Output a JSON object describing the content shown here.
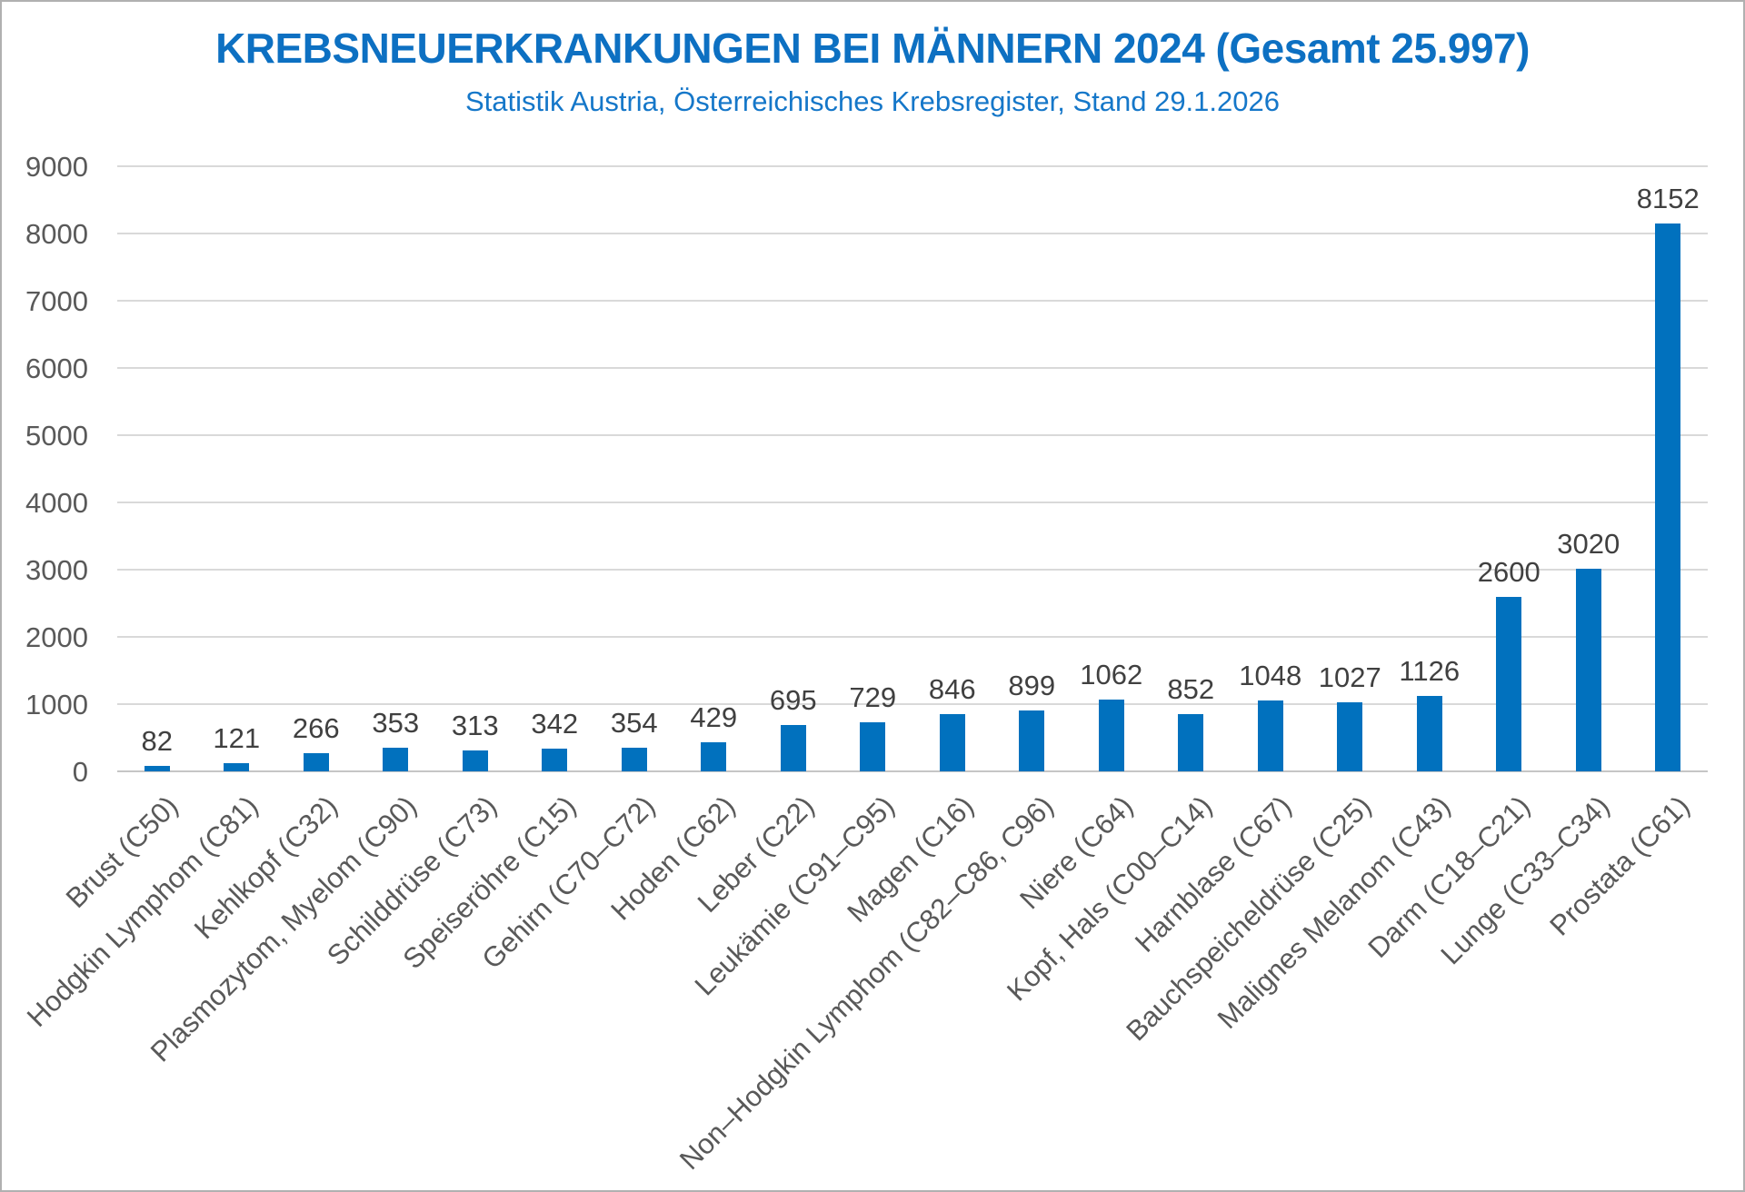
{
  "frame": {
    "background": "#ffffff",
    "border_color": "#b0b0b0"
  },
  "chart_data": {
    "type": "bar",
    "title": "KREBSNEUERKRANKUNGEN BEI MÄNNERN 2024 (Gesamt 25.997)",
    "subtitle": "Statistik Austria, Österreichisches Krebsregister, Stand 29.1.2026",
    "categories": [
      "Brust (C50)",
      "Hodgkin Lymphom (C81)",
      "Kehlkopf (C32)",
      "Plasmozytom, Myelom (C90)",
      "Schilddrüse (C73)",
      "Speiseröhre (C15)",
      "Gehirn (C70–C72)",
      "Hoden (C62)",
      "Leber (C22)",
      "Leukämie (C91–C95)",
      "Magen (C16)",
      "Non–Hodgkin Lymphom (C82–C86, C96)",
      "Niere (C64)",
      "Kopf, Hals (C00–C14)",
      "Harnblase (C67)",
      "Bauchspeicheldrüse (C25)",
      "Malignes Melanom (C43)",
      "Darm (C18–C21)",
      "Lunge (C33–C34)",
      "Prostata (C61)"
    ],
    "values": [
      82,
      121,
      266,
      353,
      313,
      342,
      354,
      429,
      695,
      729,
      846,
      899,
      1062,
      852,
      1048,
      1027,
      1126,
      2600,
      3020,
      8152
    ],
    "xlabel": "",
    "ylabel": "",
    "ylim": [
      0,
      9000
    ],
    "ytick_step": 1000,
    "yticks": [
      0,
      1000,
      2000,
      3000,
      4000,
      5000,
      6000,
      7000,
      8000,
      9000
    ],
    "grid": "horizontal",
    "legend": "none",
    "value_labels": "outside-end",
    "x_label_rotation_deg": 45,
    "colors": {
      "bar": "#0171be",
      "title": "#0d70c2",
      "subtitle": "#1577c9",
      "axis_labels": "#595959",
      "value_labels": "#404040",
      "gridline": "#d9d9d9",
      "axis_line": "#c6c6c6"
    }
  }
}
